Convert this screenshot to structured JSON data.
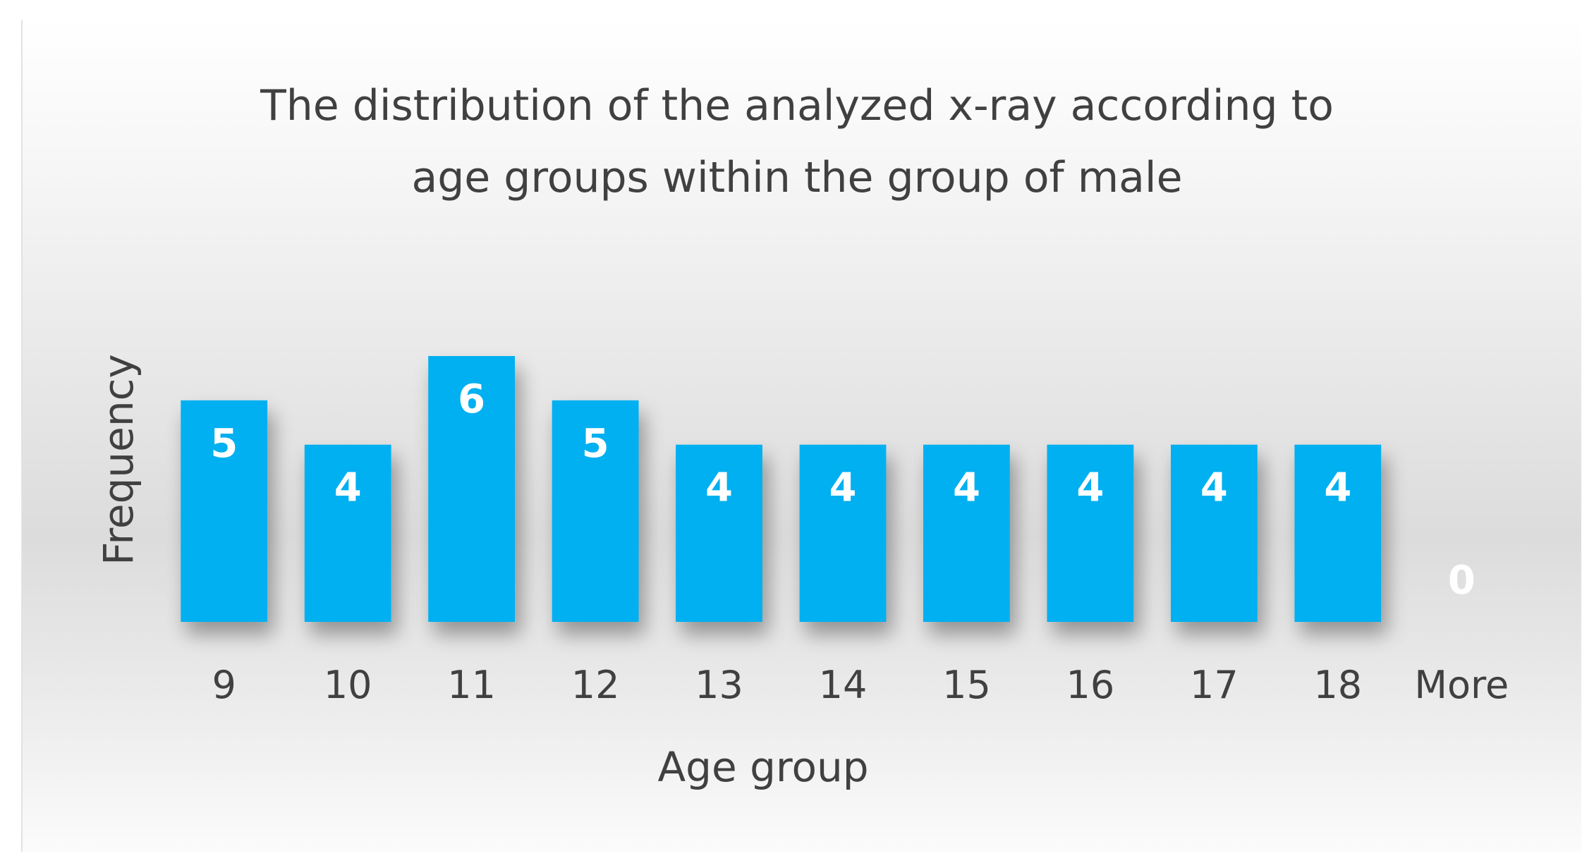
{
  "chart_data": {
    "type": "bar",
    "title_lines": [
      "The distribution of the analyzed x-ray according to",
      "age groups within the group of male"
    ],
    "xlabel": "Age group",
    "ylabel": "Frequency",
    "categories": [
      "9",
      "10",
      "11",
      "12",
      "13",
      "14",
      "15",
      "16",
      "17",
      "18",
      "More"
    ],
    "values": [
      5,
      4,
      6,
      5,
      4,
      4,
      4,
      4,
      4,
      4,
      0
    ],
    "data_labels": [
      "5",
      "4",
      "6",
      "5",
      "4",
      "4",
      "4",
      "4",
      "4",
      "4",
      "0"
    ],
    "ylim": [
      0,
      6
    ],
    "grid": false,
    "legend": "none",
    "bar_color": "#00b0f0",
    "label_color": "#ffffff",
    "text_color": "#404040"
  }
}
